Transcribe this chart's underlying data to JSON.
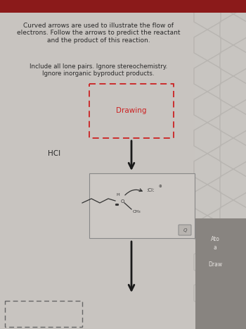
{
  "bg_color": "#c8c4c0",
  "top_bar_color": "#8b1a1a",
  "title_text": "Curved arrows are used to illustrate the flow of\nelectrons. Follow the arrows to predict the reactant\nand the product of this reaction.",
  "subtitle_text": "Include all lone pairs. Ignore stereochemistry.\nIgnore inorganic byproduct products.",
  "hcl_label": "HCI",
  "drawing_label": "Drawing",
  "text_color": "#2a2a2a",
  "drawing_box_color": "#cc2222",
  "right_panel_bg": "#c0bdb9",
  "right_panel_dark_bg": "#888480",
  "right_text1": "Ato",
  "right_text2": "a",
  "right_text3": "Draw"
}
